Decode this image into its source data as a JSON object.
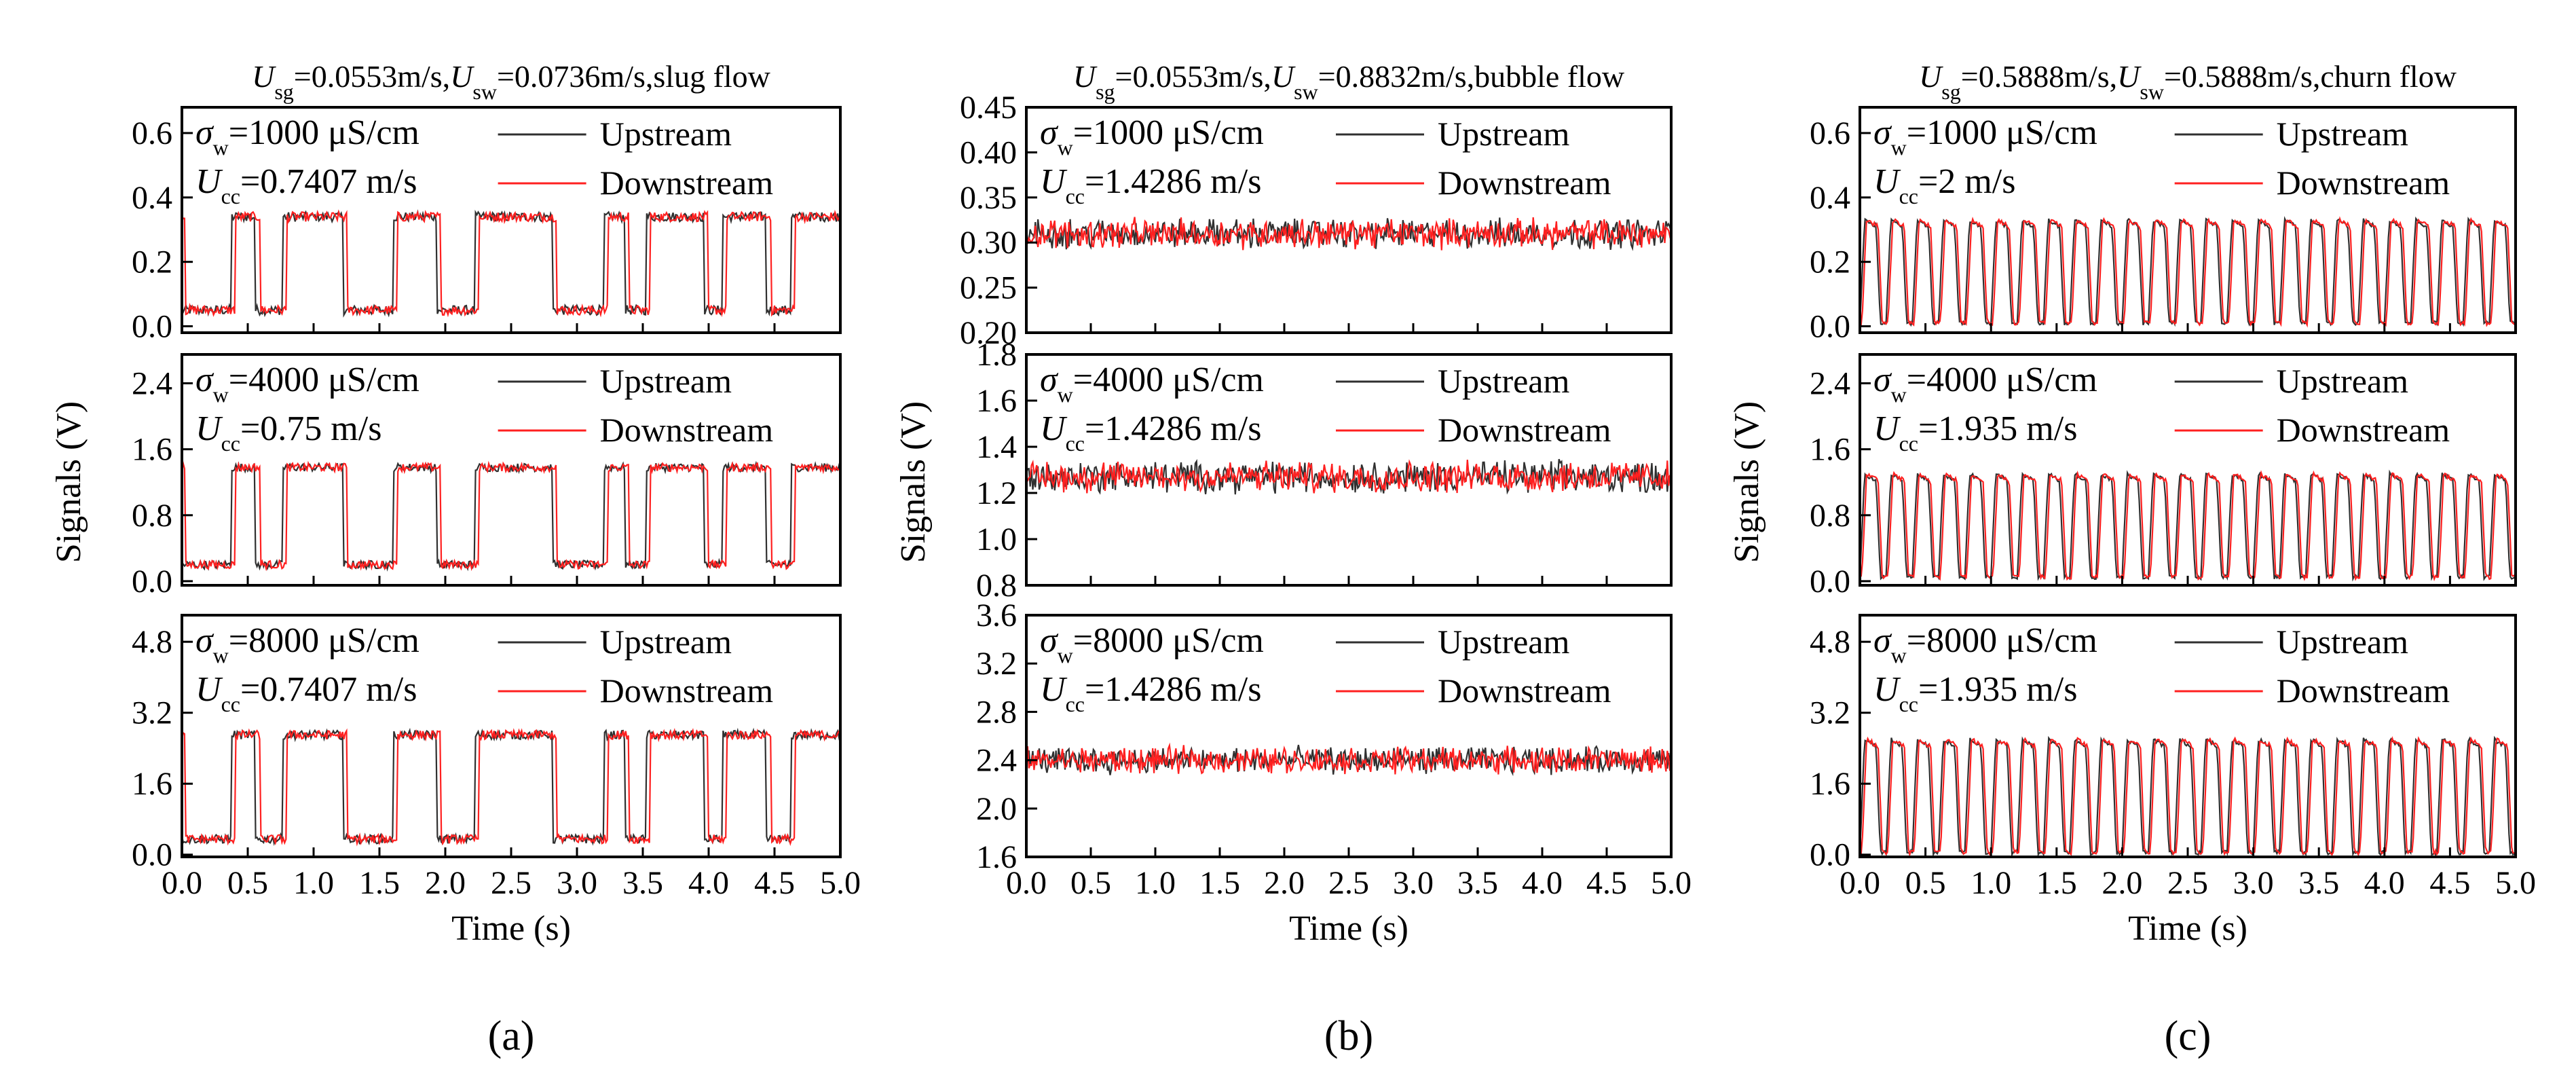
{
  "figure": {
    "legend": {
      "upstream": "Upstream",
      "downstream": "Downstream"
    },
    "colors": {
      "upstream": "#303030",
      "downstream": "#ff2020"
    },
    "xlabel": "Time (s)",
    "ylabel": "Signals (V)"
  },
  "chart_data": [
    {
      "panel": "a",
      "caption": "(a)",
      "type": "line",
      "title": {
        "usg": "=0.0553m/s,",
        "usw": "=0.0736m/s,slug flow"
      },
      "flow": "slug",
      "duration": 5.0,
      "xticks": [
        "0.0",
        "0.5",
        "1.0",
        "1.5",
        "2.0",
        "2.5",
        "3.0",
        "3.5",
        "4.0",
        "4.5",
        "5.0"
      ],
      "xlim": [
        0,
        5
      ],
      "subplots": [
        {
          "sigma": "=1000 μS/cm",
          "ucc": "=0.7407 m/s",
          "ylim": [
            -0.02,
            0.68
          ],
          "yticks": [
            "0.0",
            "0.2",
            "0.4",
            "0.6"
          ],
          "ytick_values": [
            0,
            0.2,
            0.4,
            0.6
          ],
          "high": 0.34,
          "low": 0.05,
          "noise": 0.015,
          "plugs": [
            [
              0.0,
              0.37
            ],
            [
              0.56,
              0.76
            ],
            [
              1.23,
              1.6
            ],
            [
              1.94,
              2.22
            ],
            [
              2.82,
              3.2
            ],
            [
              3.37,
              3.52
            ],
            [
              3.97,
              4.1
            ],
            [
              4.44,
              4.62
            ]
          ]
        },
        {
          "sigma": "=4000 μS/cm",
          "ucc": "=0.75 m/s",
          "ylim": [
            -0.05,
            2.75
          ],
          "yticks": [
            "0.0",
            "0.8",
            "1.6",
            "2.4"
          ],
          "ytick_values": [
            0,
            0.8,
            1.6,
            2.4
          ],
          "high": 1.38,
          "low": 0.2,
          "noise": 0.05,
          "plugs": [
            [
              0.0,
              0.37
            ],
            [
              0.56,
              0.76
            ],
            [
              1.23,
              1.6
            ],
            [
              1.94,
              2.22
            ],
            [
              2.82,
              3.2
            ],
            [
              3.37,
              3.52
            ],
            [
              3.97,
              4.1
            ],
            [
              4.44,
              4.62
            ]
          ]
        },
        {
          "sigma": "=8000 μS/cm",
          "ucc": "=0.7407 m/s",
          "ylim": [
            -0.05,
            5.4
          ],
          "yticks": [
            "0.0",
            "1.6",
            "3.2",
            "4.8"
          ],
          "ytick_values": [
            0,
            1.6,
            3.2,
            4.8
          ],
          "high": 2.7,
          "low": 0.35,
          "noise": 0.1,
          "plugs": [
            [
              0.0,
              0.37
            ],
            [
              0.56,
              0.76
            ],
            [
              1.23,
              1.6
            ],
            [
              1.94,
              2.22
            ],
            [
              2.82,
              3.2
            ],
            [
              3.37,
              3.52
            ],
            [
              3.97,
              4.1
            ],
            [
              4.44,
              4.62
            ]
          ]
        }
      ]
    },
    {
      "panel": "b",
      "caption": "(b)",
      "type": "line",
      "title": {
        "usg": "=0.0553m/s,",
        "usw": "=0.8832m/s,bubble flow"
      },
      "flow": "bubble",
      "duration": 5.0,
      "xticks": [
        "0.0",
        "0.5",
        "1.0",
        "1.5",
        "2.0",
        "2.5",
        "3.0",
        "3.5",
        "4.0",
        "4.5",
        "5.0"
      ],
      "xlim": [
        0,
        5
      ],
      "subplots": [
        {
          "sigma": "=1000 μS/cm",
          "ucc": "=1.4286 m/s",
          "ylim": [
            0.2,
            0.45
          ],
          "yticks": [
            "0.20",
            "0.25",
            "0.30",
            "0.35",
            "0.40",
            "0.45"
          ],
          "ytick_values": [
            0.2,
            0.25,
            0.3,
            0.35,
            0.4,
            0.45
          ],
          "mean": 0.31,
          "noise": 0.012
        },
        {
          "sigma": "=4000 μS/cm",
          "ucc": "=1.4286 m/s",
          "ylim": [
            0.8,
            1.8
          ],
          "yticks": [
            "0.8",
            "1.0",
            "1.2",
            "1.4",
            "1.6",
            "1.8"
          ],
          "ytick_values": [
            0.8,
            1.0,
            1.2,
            1.4,
            1.6,
            1.8
          ],
          "mean": 1.27,
          "noise": 0.05
        },
        {
          "sigma": "=8000 μS/cm",
          "ucc": "=1.4286 m/s",
          "ylim": [
            1.6,
            3.6
          ],
          "yticks": [
            "1.6",
            "2.0",
            "2.4",
            "2.8",
            "3.2",
            "3.6"
          ],
          "ytick_values": [
            1.6,
            2.0,
            2.4,
            2.8,
            3.2,
            3.6
          ],
          "mean": 2.4,
          "noise": 0.08
        }
      ]
    },
    {
      "panel": "c",
      "caption": "(c)",
      "type": "line",
      "title": {
        "usg": "=0.5888m/s,",
        "usw": "=0.5888m/s,churn flow"
      },
      "flow": "churn",
      "duration": 5.0,
      "period": 0.2,
      "xticks": [
        "0.0",
        "0.5",
        "1.0",
        "1.5",
        "2.0",
        "2.5",
        "3.0",
        "3.5",
        "4.0",
        "4.5",
        "5.0"
      ],
      "xlim": [
        0,
        5
      ],
      "subplots": [
        {
          "sigma": "=1000 μS/cm",
          "ucc": "=2 m/s",
          "ylim": [
            -0.02,
            0.68
          ],
          "yticks": [
            "0.0",
            "0.2",
            "0.4",
            "0.6"
          ],
          "ytick_values": [
            0,
            0.2,
            0.4,
            0.6
          ],
          "high": 0.33,
          "low": 0.01
        },
        {
          "sigma": "=4000 μS/cm",
          "ucc": "=1.935 m/s",
          "ylim": [
            -0.05,
            2.75
          ],
          "yticks": [
            "0.0",
            "0.8",
            "1.6",
            "2.4"
          ],
          "ytick_values": [
            0,
            0.8,
            1.6,
            2.4
          ],
          "high": 1.3,
          "low": 0.05
        },
        {
          "sigma": "=8000 μS/cm",
          "ucc": "=1.935 m/s",
          "ylim": [
            -0.05,
            5.4
          ],
          "yticks": [
            "0.0",
            "1.6",
            "3.2",
            "4.8"
          ],
          "ytick_values": [
            0,
            1.6,
            3.2,
            4.8
          ],
          "high": 2.6,
          "low": 0.05
        }
      ]
    }
  ]
}
